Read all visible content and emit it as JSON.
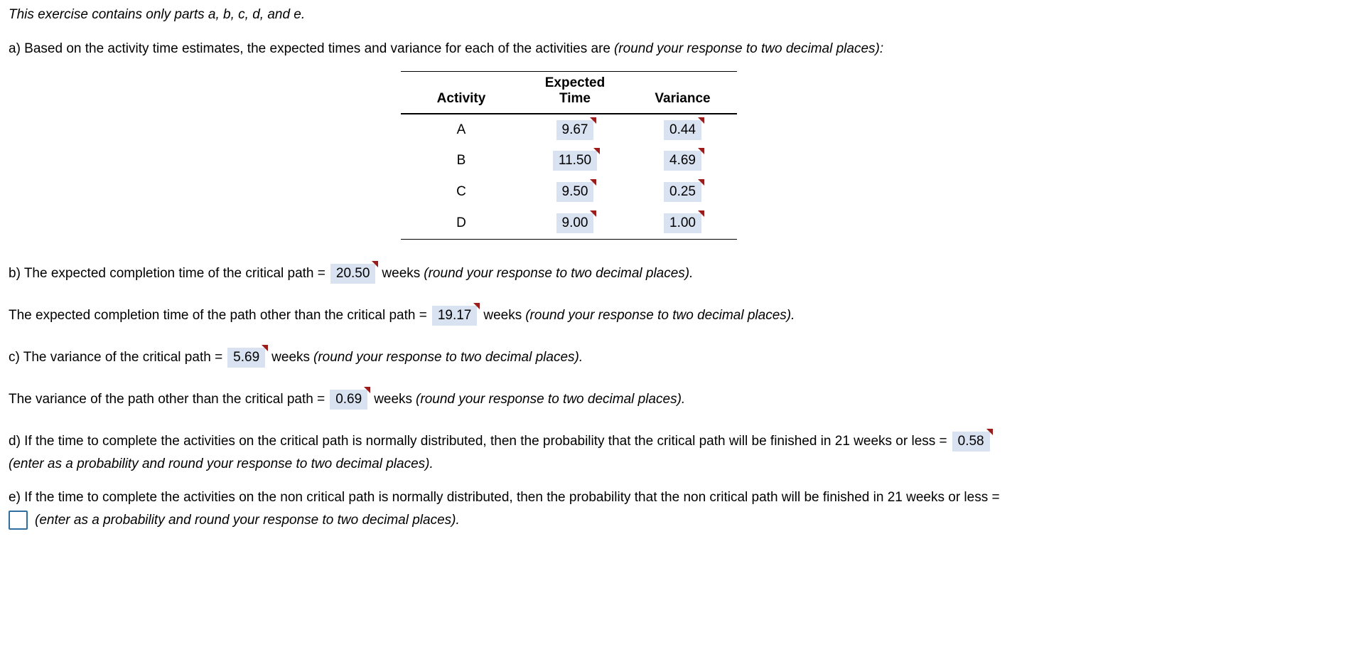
{
  "colors": {
    "answer_background": "#d9e2f0",
    "correct_flag_red": "#9c1c1c",
    "input_border_blue": "#2f6f9f",
    "text": "#000000",
    "page_background": "#ffffff"
  },
  "intro": "This exercise contains only parts a, b, c, d, and e.",
  "part_a": {
    "text": "a) Based on the activity time estimates, the expected times and variance for each of the activities are",
    "note": "(round your response to two decimal places):",
    "table": {
      "header_expected": "Expected",
      "header_activity": "Activity",
      "header_time": "Time",
      "header_variance": "Variance",
      "rows": [
        {
          "activity": "A",
          "expected_time": "9.67",
          "variance": "0.44"
        },
        {
          "activity": "B",
          "expected_time": "11.50",
          "variance": "4.69"
        },
        {
          "activity": "C",
          "expected_time": "9.50",
          "variance": "0.25"
        },
        {
          "activity": "D",
          "expected_time": "9.00",
          "variance": "1.00"
        }
      ]
    }
  },
  "part_b": {
    "line1": {
      "prefix": "b) The expected completion time of the critical path =",
      "value": "20.50",
      "mid": "weeks",
      "note": "(round your response to two decimal places)."
    },
    "line2": {
      "prefix": "The expected completion time of the path other than the critical path =",
      "value": "19.17",
      "mid": "weeks",
      "note": "(round your response to two decimal places)."
    }
  },
  "part_c": {
    "line1": {
      "prefix": "c) The variance of the critical path =",
      "value": "5.69",
      "mid": "weeks",
      "note": "(round your response to two decimal places)."
    },
    "line2": {
      "prefix": "The variance of the path other than the critical path =",
      "value": "0.69",
      "mid": "weeks",
      "note": "(round your response to two decimal places)."
    }
  },
  "part_d": {
    "prefix": "d) If the time to complete the activities on the critical path is normally distributed, then the probability that the critical path will be finished in 21 weeks or less =",
    "value": "0.58",
    "note": "(enter as a probability and round your response to two decimal places)."
  },
  "part_e": {
    "line1": "e) If the time to complete the activities on the non critical path is normally distributed, then the probability that the non critical path will be finished in 21 weeks or less =",
    "input_value": "",
    "note": "(enter as a probability and round your response to two decimal places)."
  }
}
